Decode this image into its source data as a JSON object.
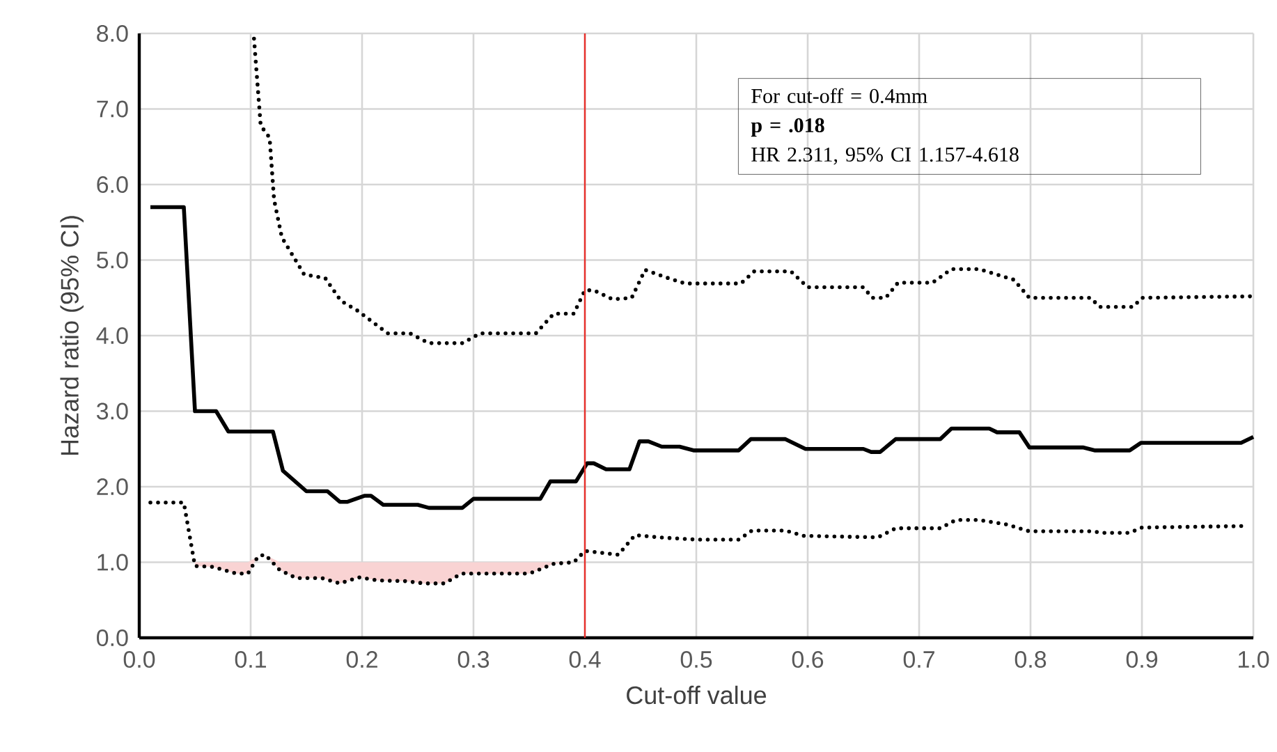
{
  "chart_data": {
    "type": "line",
    "xlabel": "Cut-off value",
    "ylabel": "Hazard ratio (95% CI)",
    "xlim": [
      0,
      1
    ],
    "ylim": [
      0,
      8
    ],
    "xticks": [
      {
        "value": 0,
        "label": "0.0"
      },
      {
        "value": 0.1,
        "label": "0.1"
      },
      {
        "value": 0.2,
        "label": "0.2"
      },
      {
        "value": 0.3,
        "label": "0.3"
      },
      {
        "value": 0.4,
        "label": "0.4"
      },
      {
        "value": 0.5,
        "label": "0.5"
      },
      {
        "value": 0.6,
        "label": "0.6"
      },
      {
        "value": 0.7,
        "label": "0.7"
      },
      {
        "value": 0.8,
        "label": "0.8"
      },
      {
        "value": 0.9,
        "label": "0.9"
      },
      {
        "value": 1,
        "label": "1.0"
      }
    ],
    "yticks": [
      {
        "value": 0,
        "label": "0.0"
      },
      {
        "value": 1,
        "label": "1.0"
      },
      {
        "value": 2,
        "label": "2.0"
      },
      {
        "value": 3,
        "label": "3.0"
      },
      {
        "value": 4,
        "label": "4.0"
      },
      {
        "value": 5,
        "label": "5.0"
      },
      {
        "value": 6,
        "label": "6.0"
      },
      {
        "value": 7,
        "label": "7.0"
      },
      {
        "value": 8,
        "label": "8.0"
      }
    ],
    "grid": true,
    "series": [
      {
        "color": "#000000",
        "line_style": "dotted",
        "x": [
          0.103,
          0.109,
          0.117,
          0.121,
          0.128,
          0.148,
          0.167,
          0.181,
          0.196,
          0.223,
          0.243,
          0.26,
          0.29,
          0.306,
          0.356,
          0.372,
          0.39,
          0.4,
          0.408,
          0.425,
          0.442,
          0.454,
          0.473,
          0.49,
          0.54,
          0.552,
          0.585,
          0.6,
          0.65,
          0.658,
          0.67,
          0.681,
          0.712,
          0.729,
          0.754,
          0.785,
          0.799,
          0.854,
          0.862,
          0.892,
          0.9,
          0.998
        ],
        "values": [
          7.93,
          6.78,
          6.62,
          5.8,
          5.3,
          4.81,
          4.76,
          4.46,
          4.33,
          4.03,
          4.03,
          3.9,
          3.9,
          4.03,
          4.03,
          4.29,
          4.29,
          4.6,
          4.6,
          4.48,
          4.5,
          4.87,
          4.77,
          4.69,
          4.69,
          4.85,
          4.85,
          4.64,
          4.64,
          4.5,
          4.5,
          4.7,
          4.7,
          4.88,
          4.88,
          4.74,
          4.5,
          4.5,
          4.38,
          4.38,
          4.5,
          4.52
        ]
      },
      {
        "color": "#000000",
        "line_style": "solid",
        "x": [
          0.01,
          0.04,
          0.05,
          0.069,
          0.08,
          0.12,
          0.129,
          0.15,
          0.169,
          0.18,
          0.187,
          0.202,
          0.208,
          0.219,
          0.25,
          0.26,
          0.29,
          0.3,
          0.36,
          0.369,
          0.392,
          0.402,
          0.408,
          0.419,
          0.44,
          0.449,
          0.457,
          0.469,
          0.485,
          0.498,
          0.538,
          0.549,
          0.58,
          0.598,
          0.65,
          0.657,
          0.665,
          0.679,
          0.719,
          0.729,
          0.763,
          0.77,
          0.79,
          0.799,
          0.847,
          0.858,
          0.889,
          0.899,
          0.989,
          1.0
        ],
        "values": [
          5.7,
          5.7,
          3.0,
          3.0,
          2.73,
          2.73,
          2.21,
          1.94,
          1.94,
          1.8,
          1.8,
          1.88,
          1.88,
          1.76,
          1.76,
          1.72,
          1.72,
          1.84,
          1.84,
          2.07,
          2.07,
          2.31,
          2.31,
          2.23,
          2.23,
          2.6,
          2.6,
          2.53,
          2.53,
          2.48,
          2.48,
          2.63,
          2.63,
          2.5,
          2.5,
          2.46,
          2.46,
          2.63,
          2.63,
          2.77,
          2.77,
          2.72,
          2.72,
          2.52,
          2.52,
          2.48,
          2.48,
          2.58,
          2.58,
          2.66
        ]
      },
      {
        "color": "#000000",
        "line_style": "dotted",
        "x": [
          0.01,
          0.04,
          0.05,
          0.066,
          0.0875,
          0.0975,
          0.1067,
          0.113,
          0.126,
          0.141,
          0.164,
          0.18,
          0.197,
          0.214,
          0.239,
          0.256,
          0.274,
          0.289,
          0.35,
          0.372,
          0.39,
          0.4,
          0.43,
          0.445,
          0.466,
          0.5,
          0.538,
          0.55,
          0.58,
          0.596,
          0.663,
          0.679,
          0.719,
          0.733,
          0.754,
          0.779,
          0.799,
          0.854,
          0.866,
          0.889,
          0.9,
          0.994
        ],
        "lower": [
          null,
          null,
          0.95,
          0.94,
          0.85,
          0.85,
          1.08,
          1.1,
          0.9,
          0.79,
          0.79,
          0.72,
          0.8,
          0.76,
          0.75,
          0.72,
          0.72,
          0.85,
          0.85,
          0.98,
          1.0,
          null,
          null,
          null,
          null,
          null,
          null,
          null,
          null,
          null,
          null,
          null,
          null,
          null,
          null,
          null,
          null,
          null,
          null,
          null,
          null,
          null
        ],
        "upper": [
          null,
          null,
          1,
          1,
          1,
          1,
          1.08,
          1.1,
          1,
          1,
          1,
          1,
          1,
          1,
          1,
          1,
          1,
          1,
          1,
          1,
          1,
          null,
          null,
          null,
          null,
          null,
          null,
          null,
          null,
          null,
          null,
          null,
          null,
          null,
          null,
          null,
          null,
          null,
          null,
          null,
          null,
          null
        ],
        "values": [
          1.79,
          1.79,
          0.95,
          0.94,
          0.85,
          0.85,
          1.08,
          1.1,
          0.9,
          0.79,
          0.79,
          0.72,
          0.8,
          0.76,
          0.75,
          0.72,
          0.72,
          0.85,
          0.85,
          0.98,
          1.0,
          1.15,
          1.1,
          1.36,
          1.33,
          1.3,
          1.3,
          1.42,
          1.42,
          1.35,
          1.33,
          1.45,
          1.45,
          1.56,
          1.56,
          1.5,
          1.41,
          1.41,
          1.39,
          1.39,
          1.46,
          1.48
        ]
      }
    ],
    "ref_lines": [
      {
        "axis": "x",
        "value": 0.4,
        "color": "#e8302c"
      }
    ],
    "annotations": [
      "For cut-off = 0.4mm",
      "**p = .018**",
      "HR 2.311, 95% CI 1.157-4.618"
    ]
  }
}
